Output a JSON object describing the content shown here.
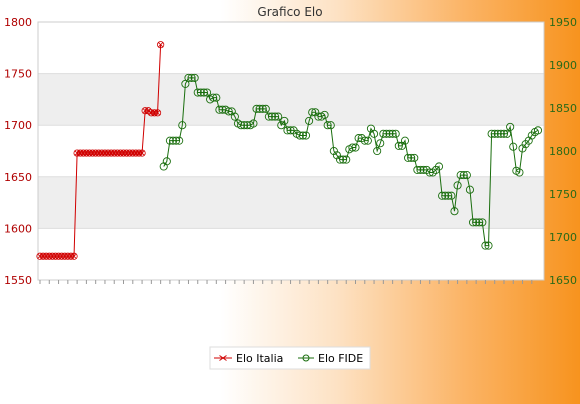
{
  "chart_data": {
    "type": "line",
    "title": "Grafico Elo",
    "series": [
      {
        "name": "Elo Italia",
        "axis": "left",
        "color": "#d00000",
        "marker": "x",
        "values": [
          1573,
          1573,
          1573,
          1573,
          1573,
          1573,
          1573,
          1573,
          1573,
          1573,
          1573,
          1573,
          1673,
          1673,
          1673,
          1673,
          1673,
          1673,
          1673,
          1673,
          1673,
          1673,
          1673,
          1673,
          1673,
          1673,
          1673,
          1673,
          1673,
          1673,
          1673,
          1673,
          1673,
          1673,
          1714,
          1714,
          1712,
          1712,
          1712,
          1778
        ]
      },
      {
        "name": "Elo FIDE",
        "axis": "right",
        "color": "#1a6e0e",
        "marker": "circle",
        "start_index": 40,
        "values": [
          1782,
          1788,
          1812,
          1812,
          1812,
          1812,
          1830,
          1878,
          1885,
          1885,
          1885,
          1868,
          1868,
          1868,
          1868,
          1860,
          1862,
          1862,
          1848,
          1848,
          1848,
          1846,
          1846,
          1840,
          1832,
          1830,
          1830,
          1830,
          1830,
          1832,
          1849,
          1849,
          1849,
          1849,
          1840,
          1840,
          1840,
          1840,
          1830,
          1835,
          1824,
          1824,
          1824,
          1820,
          1818,
          1818,
          1818,
          1835,
          1845,
          1845,
          1840,
          1840,
          1842,
          1830,
          1830,
          1800,
          1795,
          1790,
          1790,
          1790,
          1802,
          1804,
          1804,
          1815,
          1815,
          1812,
          1812,
          1826,
          1820,
          1800,
          1809,
          1820,
          1820,
          1820,
          1820,
          1820,
          1806,
          1806,
          1812,
          1792,
          1792,
          1792,
          1778,
          1778,
          1778,
          1778,
          1775,
          1775,
          1778,
          1782,
          1748,
          1748,
          1748,
          1748,
          1730,
          1760,
          1772,
          1772,
          1772,
          1755,
          1717,
          1717,
          1717,
          1717,
          1690,
          1690,
          1820,
          1820,
          1820,
          1820,
          1820,
          1820,
          1828,
          1805,
          1777,
          1775,
          1803,
          1808,
          1812,
          1818,
          1822,
          1824
        ]
      }
    ],
    "y_left": {
      "ylim": [
        1550,
        1800
      ],
      "ticks": [
        1550,
        1600,
        1650,
        1700,
        1750,
        1800
      ]
    },
    "y_right": {
      "ylim": [
        1650,
        1950
      ],
      "ticks": [
        1650,
        1700,
        1750,
        1800,
        1850,
        1900,
        1950
      ]
    },
    "x_tick_labels": "illegible rotated date labels",
    "grid": "horizontal bands",
    "legend_position": "bottom-center",
    "colors": {
      "left_axis": "#b00000",
      "right_axis": "#2a6a18",
      "band": "#eeeeee"
    }
  }
}
